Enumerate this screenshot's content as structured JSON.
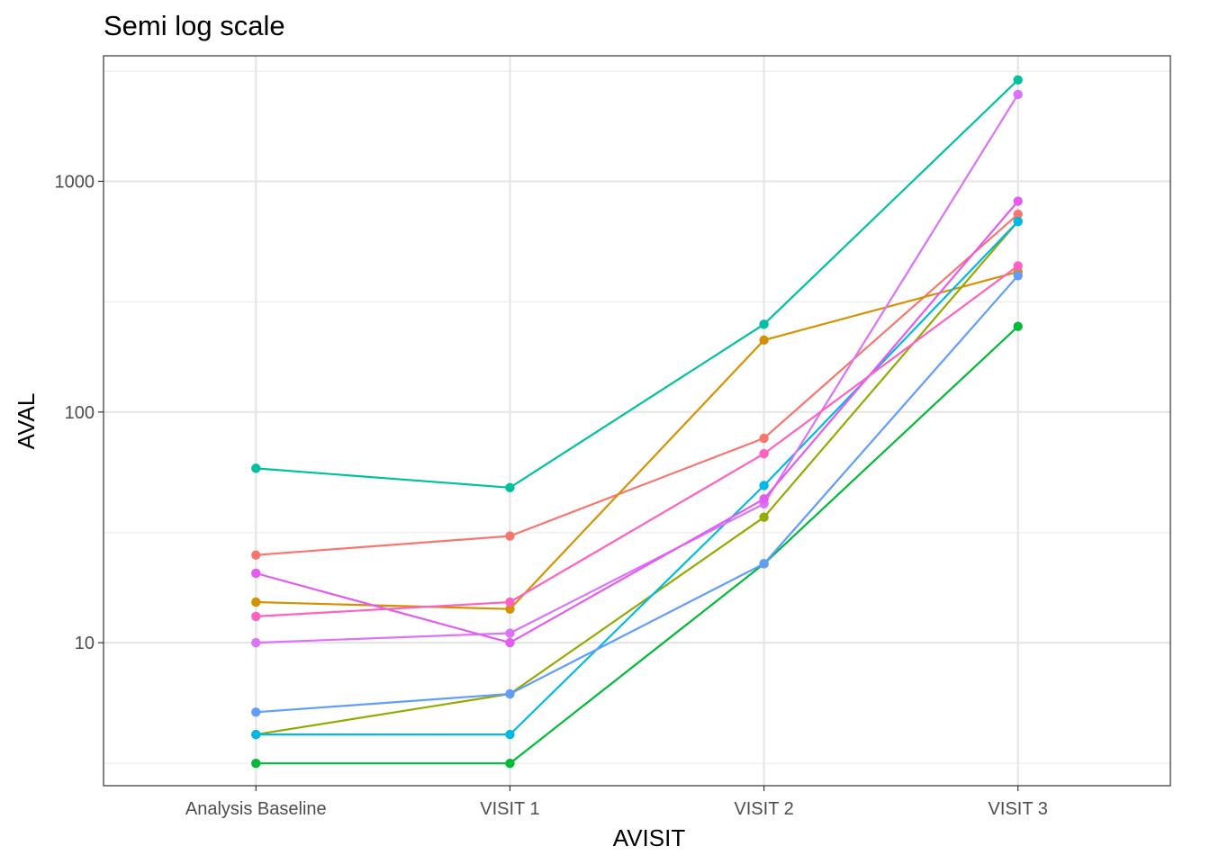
{
  "chart_data": {
    "type": "line",
    "title": "Semi log scale",
    "xlabel": "AVISIT",
    "ylabel": "AVAL",
    "categories": [
      "Analysis Baseline",
      "VISIT 1",
      "VISIT 2",
      "VISIT 3"
    ],
    "y_scale": "log10",
    "ylim": [
      2.4,
      3500
    ],
    "y_major_ticks": [
      10,
      100,
      1000
    ],
    "y_tick_labels": [
      "10",
      "100",
      "1000"
    ],
    "y_minor_gridlines": [
      3,
      30,
      300,
      3000
    ],
    "grid": true,
    "legend": "none",
    "theme": "bw",
    "series": [
      {
        "color": "#F8766D",
        "values": [
          24,
          29,
          77,
          720
        ]
      },
      {
        "color": "#D39200",
        "values": [
          15,
          14,
          205,
          405
        ]
      },
      {
        "color": "#93AA00",
        "values": [
          4,
          6,
          35,
          670
        ]
      },
      {
        "color": "#00BA38",
        "values": [
          3,
          3,
          22,
          235
        ]
      },
      {
        "color": "#00C19F",
        "values": [
          57,
          47,
          240,
          2750
        ]
      },
      {
        "color": "#00B9E3",
        "values": [
          4,
          4,
          48,
          670
        ]
      },
      {
        "color": "#619CFF",
        "values": [
          5,
          6,
          22,
          390
        ]
      },
      {
        "color": "#DB72FB",
        "values": [
          10,
          11,
          40,
          2380
        ]
      },
      {
        "color": "#E45BF0",
        "values": [
          20,
          10,
          42,
          820
        ]
      },
      {
        "color": "#FF61C3",
        "values": [
          13,
          15,
          66,
          430
        ]
      }
    ]
  }
}
